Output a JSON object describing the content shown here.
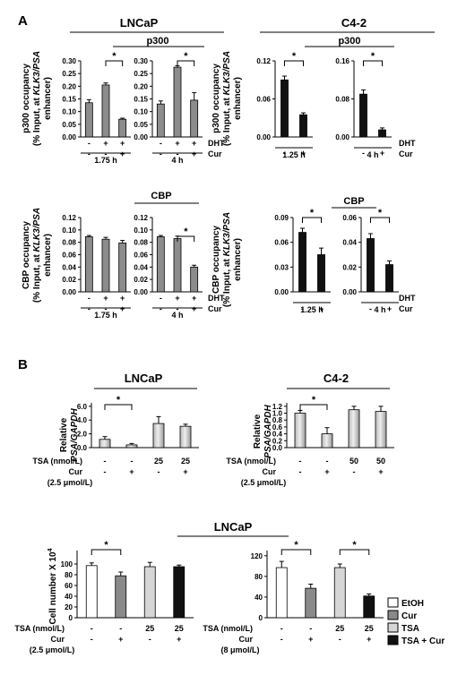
{
  "panel_labels": {
    "A": "A",
    "B": "B"
  },
  "colors": {
    "gray": "#8c8c8c",
    "black": "#111111",
    "white": "#ffffff",
    "light_gray": "#d6d6d6",
    "dark_gray": "#8a8a8a"
  },
  "chart_data": [
    {
      "id": "A_p300_lncap",
      "type": "bar",
      "header": "LNCaP",
      "subtitle": "p300",
      "ylabel": [
        "p300 occupancy",
        "(% Input, at ",
        "KLK3/PSA",
        "enhancer)"
      ],
      "ylim": [
        0,
        0.3
      ],
      "yticks": [
        "0.00",
        "0.05",
        "0.10",
        "0.15",
        "0.20",
        "0.25",
        "0.30"
      ],
      "groups": [
        {
          "time": "1.75 h",
          "values": [
            0.135,
            0.205,
            0.07
          ],
          "errors": [
            0.012,
            0.008,
            0.004
          ],
          "dht": [
            "-",
            "+",
            "+"
          ],
          "cur": [
            "-",
            "-",
            "+"
          ],
          "sig": [
            [
              1,
              2
            ]
          ]
        },
        {
          "time": "4 h",
          "values": [
            0.13,
            0.275,
            0.145
          ],
          "errors": [
            0.012,
            0.006,
            0.03
          ],
          "dht": [
            "-",
            "+",
            "+"
          ],
          "cur": [
            "-",
            "-",
            "+"
          ],
          "sig": [
            [
              1,
              2
            ]
          ]
        }
      ],
      "rows": [
        "DHT",
        "Cur"
      ]
    },
    {
      "id": "A_p300_c42",
      "type": "bar",
      "header": "C4-2",
      "subtitle": "p300",
      "groups": [
        {
          "time": "1.25 h",
          "yticks": [
            "0.00",
            "0.06",
            "0.12"
          ],
          "ylim": [
            0,
            0.12
          ],
          "values": [
            0.09,
            0.035
          ],
          "errors": [
            0.006,
            0.003
          ],
          "dht": [
            "+",
            "+"
          ],
          "cur": [
            "-",
            "+"
          ],
          "sig": [
            [
              0,
              1
            ]
          ]
        },
        {
          "time": "4 h",
          "yticks": [
            "0.00",
            "0.08",
            "0.16"
          ],
          "ylim": [
            0,
            0.16
          ],
          "values": [
            0.09,
            0.015
          ],
          "errors": [
            0.009,
            0.004
          ],
          "dht": [
            "+",
            "+"
          ],
          "cur": [
            "-",
            "+"
          ],
          "sig": [
            [
              0,
              1
            ]
          ]
        }
      ],
      "rows": [
        "DHT",
        "Cur"
      ]
    },
    {
      "id": "A_cbp_lncap",
      "type": "bar",
      "subtitle": "CBP",
      "ylabel": [
        "CBP occupancy",
        "(% Input, at ",
        "KLK3/PSA",
        "enhancer)"
      ],
      "ylim": [
        0,
        0.12
      ],
      "yticks": [
        "0.00",
        "0.02",
        "0.04",
        "0.06",
        "0.08",
        "0.10",
        "0.12"
      ],
      "groups": [
        {
          "time": "1.75 h",
          "values": [
            0.089,
            0.085,
            0.079
          ],
          "errors": [
            0.002,
            0.003,
            0.004
          ],
          "dht": [
            "-",
            "+",
            "+"
          ],
          "cur": [
            "-",
            "-",
            "+"
          ],
          "sig": []
        },
        {
          "time": "4 h",
          "values": [
            0.089,
            0.086,
            0.04
          ],
          "errors": [
            0.002,
            0.004,
            0.003
          ],
          "dht": [
            "-",
            "+",
            "+"
          ],
          "cur": [
            "-",
            "-",
            "+"
          ],
          "sig": [
            [
              1,
              2
            ]
          ]
        }
      ],
      "rows": [
        "DHT",
        "Cur"
      ]
    },
    {
      "id": "A_cbp_c42",
      "type": "bar",
      "subtitle": "CBP",
      "groups": [
        {
          "time": "1.25 h",
          "yticks": [
            "0.00",
            "0.03",
            "0.06",
            "0.09"
          ],
          "ylim": [
            0,
            0.09
          ],
          "values": [
            0.072,
            0.045
          ],
          "errors": [
            0.005,
            0.008
          ],
          "dht": [
            "+",
            "+"
          ],
          "cur": [
            "-",
            "+"
          ],
          "sig": [
            [
              0,
              1
            ]
          ]
        },
        {
          "time": "4 h",
          "yticks": [
            "0.00",
            "0.02",
            "0.04",
            "0.06"
          ],
          "ylim": [
            0,
            0.06
          ],
          "values": [
            0.043,
            0.022
          ],
          "errors": [
            0.004,
            0.003
          ],
          "dht": [
            "+",
            "+"
          ],
          "cur": [
            "-",
            "+"
          ],
          "sig": [
            [
              0,
              1
            ]
          ]
        }
      ],
      "rows": [
        "DHT",
        "Cur"
      ]
    },
    {
      "id": "B_psa_lncap",
      "type": "bar",
      "header": "LNCaP",
      "ylabel": [
        "Relative",
        "PSA/GAPDH"
      ],
      "ylim": [
        0,
        6.5
      ],
      "yticks": [
        "0.0",
        "2.0",
        "4.0",
        "6.0"
      ],
      "ytick_values": [
        0,
        2,
        4,
        6
      ],
      "values": [
        1.2,
        0.4,
        3.5,
        3.1
      ],
      "errors": [
        0.4,
        0.2,
        1.0,
        0.3
      ],
      "tsa": [
        "-",
        "-",
        "25",
        "25"
      ],
      "cur": [
        "-",
        "+",
        "-",
        "+"
      ],
      "sig": [
        [
          0,
          1
        ]
      ]
    },
    {
      "id": "B_psa_c42",
      "type": "bar",
      "header": "C4-2",
      "ylabel": [
        "Relative",
        "PSA/GAPDH"
      ],
      "ylim": [
        0,
        1.3
      ],
      "yticks": [
        "0.0",
        "0.2",
        "0.4",
        "0.6",
        "0.8",
        "1.0",
        "1.2"
      ],
      "ytick_values": [
        0,
        0.2,
        0.4,
        0.6,
        0.8,
        1.0,
        1.2
      ],
      "values": [
        1.0,
        0.4,
        1.1,
        1.05
      ],
      "errors": [
        0.08,
        0.18,
        0.1,
        0.15
      ],
      "tsa": [
        "-",
        "-",
        "50",
        "50"
      ],
      "cur": [
        "-",
        "+",
        "-",
        "+"
      ],
      "sig": [
        [
          0,
          1
        ]
      ]
    },
    {
      "id": "B_cell_lncap_1",
      "type": "bar",
      "header": "LNCaP",
      "ylabel": [
        "Cell number X 10",
        "4"
      ],
      "ylim": [
        0,
        125
      ],
      "yticks": [
        "0",
        "20",
        "40",
        "60",
        "80",
        "100"
      ],
      "ytick_values": [
        0,
        20,
        40,
        60,
        80,
        100
      ],
      "values": [
        97,
        78,
        95,
        95
      ],
      "errors": [
        5,
        7,
        8,
        3
      ],
      "tsa": [
        "-",
        "-",
        "25",
        "25"
      ],
      "cur": [
        "-",
        "+",
        "-",
        "+"
      ],
      "sig": [
        [
          0,
          1
        ]
      ]
    },
    {
      "id": "B_cell_lncap_2",
      "type": "bar",
      "ylim": [
        0,
        130
      ],
      "yticks": [
        "0",
        "40",
        "80",
        "120"
      ],
      "ytick_values": [
        0,
        40,
        80,
        120
      ],
      "values": [
        97,
        57,
        97,
        42
      ],
      "errors": [
        12,
        8,
        7,
        4
      ],
      "tsa": [
        "-",
        "-",
        "25",
        "25"
      ],
      "cur": [
        "-",
        "+",
        "-",
        "+"
      ],
      "sig": [
        [
          0,
          1
        ],
        [
          2,
          3
        ]
      ]
    }
  ],
  "row_labels": {
    "dht": "DHT",
    "cur": "Cur",
    "tsa": "TSA (nmol/L)"
  },
  "doses": {
    "cur_25": "(2.5 μmol/L)",
    "cur_8": "(8 μmol/L)"
  },
  "legend": [
    {
      "label": "EtOH",
      "color": "#ffffff"
    },
    {
      "label": "Cur",
      "color": "#8a8a8a"
    },
    {
      "label": "TSA",
      "color": "#d6d6d6"
    },
    {
      "label": "TSA + Cur",
      "color": "#111111"
    }
  ],
  "sig_mark": "*"
}
